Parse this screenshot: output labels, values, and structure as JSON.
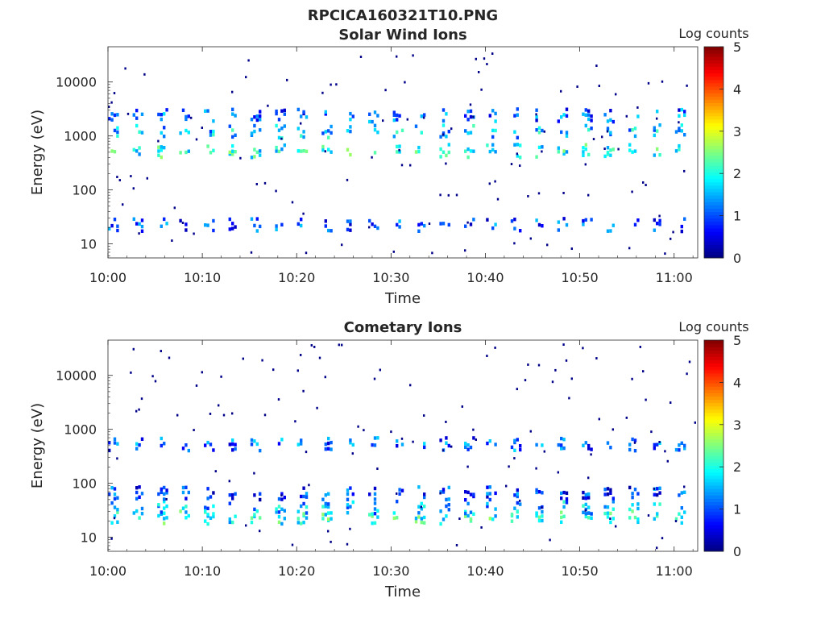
{
  "figure": {
    "title": "RPCICA160321T10.PNG"
  },
  "colormap": {
    "name": "jet",
    "stops": [
      "#00007f",
      "#0000ff",
      "#007fff",
      "#00ffff",
      "#7fff7f",
      "#ffff00",
      "#ff7f00",
      "#ff0000",
      "#7f0000"
    ]
  },
  "chart_data": [
    {
      "type": "heatmap",
      "title": "Solar Wind Ions",
      "xlabel": "Time",
      "ylabel": "Energy (eV)",
      "x_ticks": [
        "10:00",
        "10:10",
        "10:20",
        "10:30",
        "10:40",
        "10:50",
        "11:00"
      ],
      "x_tick_minutes": [
        0,
        10,
        20,
        30,
        40,
        50,
        60
      ],
      "xlim_minutes": [
        0,
        62.5
      ],
      "y_scale": "log",
      "y_ticks": [
        "10",
        "100",
        "1000",
        "10000"
      ],
      "y_tick_values": [
        10,
        100,
        1000,
        10000
      ],
      "ylim": [
        5.5,
        45000
      ],
      "colorbar": {
        "label": "Log counts",
        "ticks": [
          "0",
          "1",
          "2",
          "3",
          "4",
          "5"
        ],
        "range": [
          0,
          5
        ]
      },
      "sweep_period_minutes": 2.5,
      "bands": [
        {
          "energy_ev": 570,
          "log_counts": 1.9
        },
        {
          "energy_ev": 1300,
          "log_counts": 1.5
        },
        {
          "energy_ev": 2600,
          "log_counts": 1.0
        },
        {
          "energy_ev": 24,
          "log_counts": 0.9
        }
      ]
    },
    {
      "type": "heatmap",
      "title": "Cometary Ions",
      "xlabel": "Time",
      "ylabel": "Energy (eV)",
      "x_ticks": [
        "10:00",
        "10:10",
        "10:20",
        "10:30",
        "10:40",
        "10:50",
        "11:00"
      ],
      "x_tick_minutes": [
        0,
        10,
        20,
        30,
        40,
        50,
        60
      ],
      "xlim_minutes": [
        0,
        62.5
      ],
      "y_scale": "log",
      "y_ticks": [
        "10",
        "100",
        "1000",
        "10000"
      ],
      "y_tick_values": [
        10,
        100,
        1000,
        10000
      ],
      "ylim": [
        5.5,
        45000
      ],
      "colorbar": {
        "label": "Log counts",
        "ticks": [
          "0",
          "1",
          "2",
          "3",
          "4",
          "5"
        ],
        "range": [
          0,
          5
        ]
      },
      "sweep_period_minutes": 2.5,
      "bands": [
        {
          "energy_ev": 25,
          "log_counts": 1.9
        },
        {
          "energy_ev": 38,
          "log_counts": 1.4
        },
        {
          "energy_ev": 70,
          "log_counts": 0.8
        },
        {
          "energy_ev": 570,
          "log_counts": 1.0
        }
      ]
    }
  ]
}
